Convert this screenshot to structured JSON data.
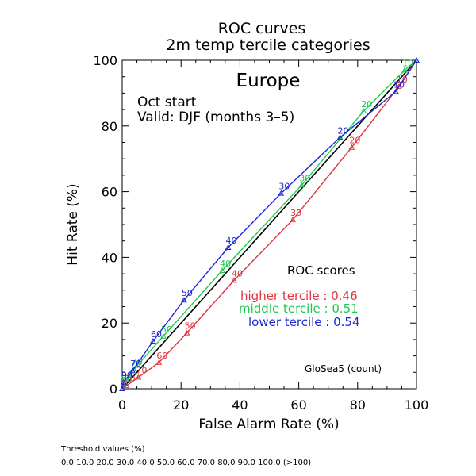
{
  "chart_data": {
    "type": "line",
    "title": "ROC curves",
    "subtitle": "2m temp tercile categories",
    "region": "Europe",
    "start_label": "Oct start",
    "valid_label": "Valid: DJF (months 3–5)",
    "xlabel": "False Alarm Rate (%)",
    "ylabel": "Hit Rate (%)",
    "xlim": [
      0,
      100
    ],
    "ylim": [
      0,
      100
    ],
    "x_ticks": [
      "0",
      "20",
      "40",
      "60",
      "80",
      "100"
    ],
    "y_ticks": [
      "0",
      "20",
      "40",
      "60",
      "80",
      "100"
    ],
    "grid": false,
    "diagonal": true,
    "scores_heading": "ROC scores",
    "model_label": "GloSea5 (count)",
    "series": [
      {
        "name": "higher tercile",
        "score_label": "higher tercile : 0.46",
        "color": "#e0323c",
        "points": [
          {
            "x": 0,
            "y": 0,
            "label": ""
          },
          {
            "x": 1.5,
            "y": 1,
            "label": "80"
          },
          {
            "x": 5.5,
            "y": 3.5,
            "label": "70"
          },
          {
            "x": 12.5,
            "y": 8,
            "label": "60"
          },
          {
            "x": 22,
            "y": 17,
            "label": "50"
          },
          {
            "x": 38,
            "y": 33,
            "label": "40"
          },
          {
            "x": 58,
            "y": 51.5,
            "label": "30"
          },
          {
            "x": 78,
            "y": 73.5,
            "label": "20"
          },
          {
            "x": 94,
            "y": 92,
            "label": "10"
          },
          {
            "x": 100,
            "y": 100,
            "label": ""
          }
        ]
      },
      {
        "name": "middle tercile",
        "score_label": "middle tercile : 0.51",
        "color": "#1ec850",
        "points": [
          {
            "x": 0,
            "y": 0,
            "label": ""
          },
          {
            "x": 0.5,
            "y": 1,
            "label": "90"
          },
          {
            "x": 4,
            "y": 6,
            "label": "70"
          },
          {
            "x": 14,
            "y": 16,
            "label": "50"
          },
          {
            "x": 34,
            "y": 36,
            "label": "40"
          },
          {
            "x": 61,
            "y": 62,
            "label": "30"
          },
          {
            "x": 82,
            "y": 84.5,
            "label": "20"
          },
          {
            "x": 96,
            "y": 97,
            "label": "10"
          },
          {
            "x": 100,
            "y": 100,
            "label": ""
          }
        ]
      },
      {
        "name": "lower tercile",
        "score_label": "lower tercile : 0.54",
        "color": "#1e28d2",
        "points": [
          {
            "x": 0,
            "y": 0,
            "label": ""
          },
          {
            "x": 0.5,
            "y": 2,
            "label": "90"
          },
          {
            "x": 3.5,
            "y": 5.5,
            "label": "70"
          },
          {
            "x": 10.5,
            "y": 14.5,
            "label": "60"
          },
          {
            "x": 21,
            "y": 27,
            "label": "50"
          },
          {
            "x": 36,
            "y": 43,
            "label": "40"
          },
          {
            "x": 54,
            "y": 59.5,
            "label": "30"
          },
          {
            "x": 74,
            "y": 76.5,
            "label": "20"
          },
          {
            "x": 93,
            "y": 90.5,
            "label": "10"
          },
          {
            "x": 100,
            "y": 100,
            "label": ""
          }
        ]
      }
    ]
  },
  "footer": {
    "threshold_heading": "Threshold values (%)",
    "threshold_values": "0.0 10.0 20.0 30.0 40.0 50.0 60.0 70.0 80.0 90.0 100.0 (>100)"
  }
}
